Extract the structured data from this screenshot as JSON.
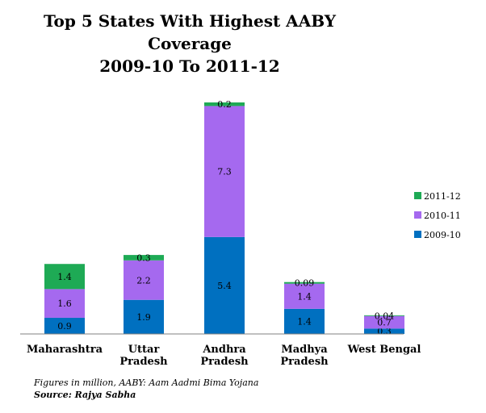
{
  "chart_data": {
    "type": "bar",
    "stacked": true,
    "title_line1": "Top 5 States With Highest AABY Coverage",
    "title_line2": "2009-10 To 2011-12",
    "categories": [
      [
        "Maharashtra"
      ],
      [
        "Uttar",
        "Pradesh"
      ],
      [
        "Andhra",
        "Pradesh"
      ],
      [
        "Madhya",
        "Pradesh"
      ],
      [
        "West Bengal"
      ]
    ],
    "series": [
      {
        "name": "2009-10",
        "color": "#0070c0",
        "values": [
          0.9,
          1.9,
          5.4,
          1.4,
          0.3
        ],
        "labels": [
          "0.9",
          "1.9",
          "5.4",
          "1.4",
          "0.3"
        ]
      },
      {
        "name": "2010-11",
        "color": "#a569ef",
        "values": [
          1.6,
          2.2,
          7.3,
          1.4,
          0.7
        ],
        "labels": [
          "1.6",
          "2.2",
          "7.3",
          "1.4",
          "0.7"
        ]
      },
      {
        "name": "2011-12",
        "color": "#1eaa55",
        "values": [
          1.4,
          0.3,
          0.2,
          0.09,
          0.04
        ],
        "labels": [
          "1.4",
          "0.3",
          "0.2",
          "0.09",
          "0.04"
        ]
      }
    ],
    "legend_position": "right",
    "grid": false
  },
  "notes": {
    "footnote": "Figures in million, AABY: Aam Aadmi Bima Yojana",
    "source": "Source: Rajya Sabha"
  }
}
